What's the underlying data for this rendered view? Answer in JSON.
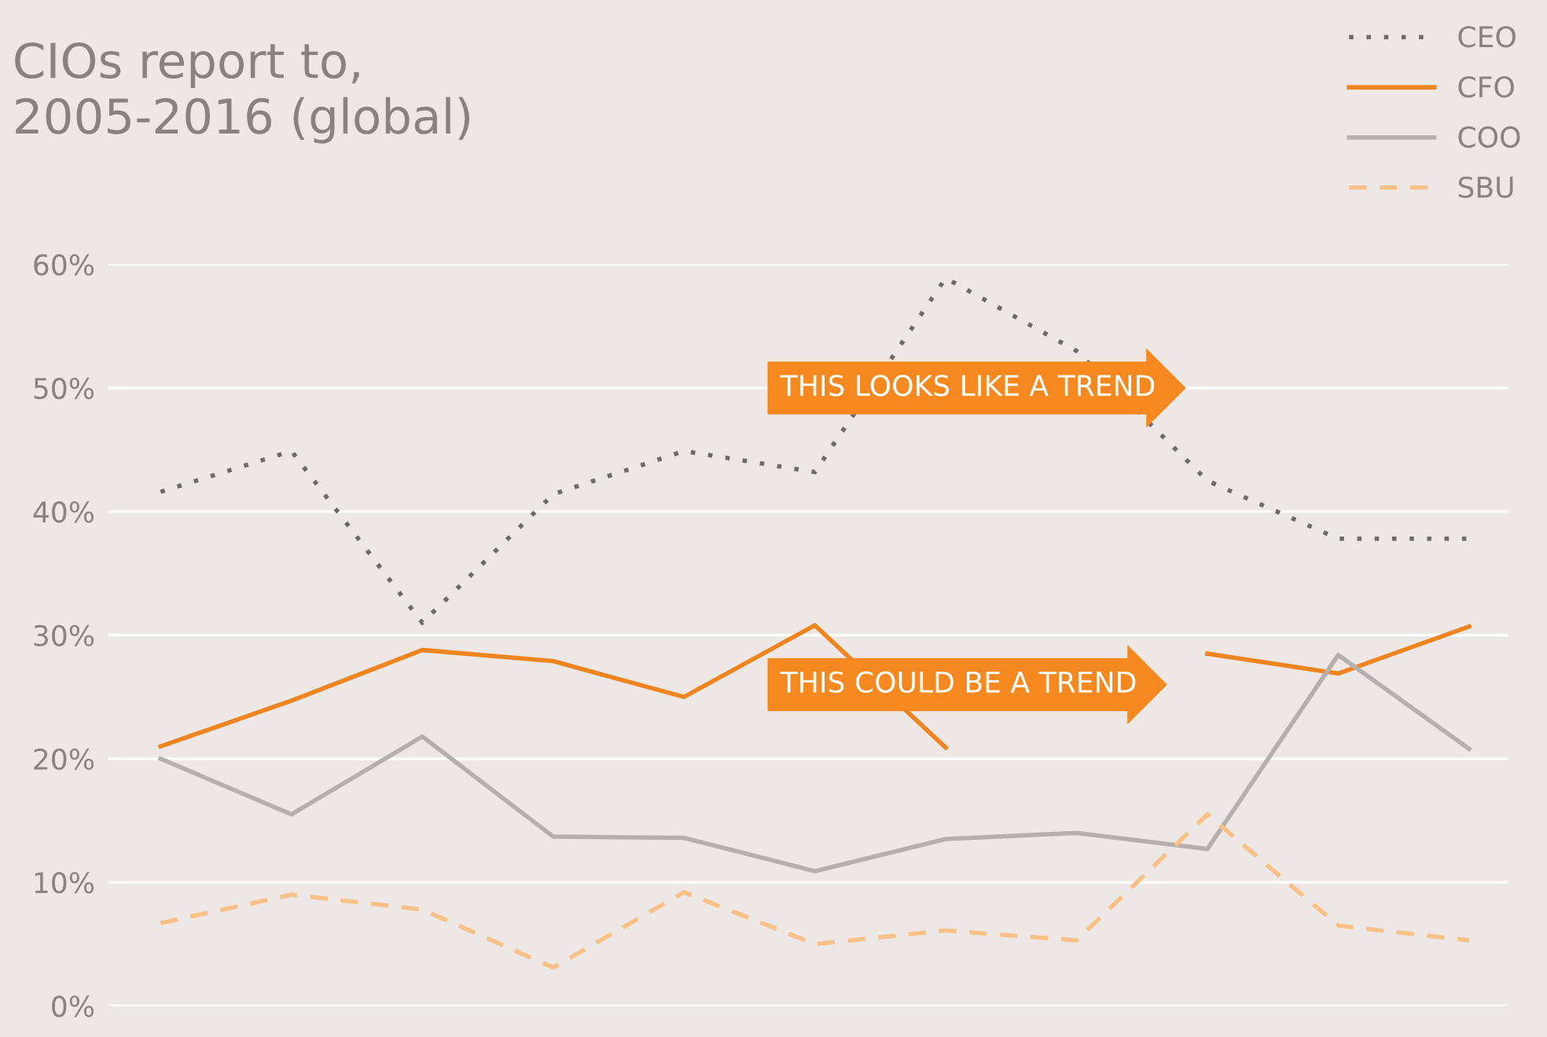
{
  "chart_data": {
    "type": "line",
    "title": "CIOs report to,\n2005-2016 (global)",
    "categories": [
      null,
      null,
      null,
      null,
      null,
      null,
      null,
      null,
      null,
      null,
      null
    ],
    "series": [
      {
        "name": "CEO",
        "color": "#6e6a6a",
        "line_style": "dotted",
        "values": [
          41.6,
          44.9,
          31,
          41.4,
          44.9,
          43.2,
          58.9,
          53,
          42.5,
          37.8,
          37.8
        ]
      },
      {
        "name": "CFO",
        "color": "#f0841f",
        "line_style": "solid",
        "values": [
          21,
          24.7,
          28.8,
          27.9,
          25,
          30.8,
          20.9,
          null,
          28.5,
          26.9,
          30.7
        ]
      },
      {
        "name": "COO",
        "color": "#b5b0ae",
        "line_style": "solid",
        "values": [
          20,
          15.5,
          21.8,
          13.7,
          13.6,
          10.9,
          13.5,
          14,
          12.7,
          28.4,
          20.8
        ]
      },
      {
        "name": "SBU",
        "color": "#f9c187",
        "line_style": "dashed",
        "values": [
          6.7,
          9,
          7.8,
          3.1,
          9.2,
          5,
          6.1,
          5.3,
          15.5,
          6.5,
          5.3
        ]
      }
    ],
    "annotations": [
      "THIS LOOKS LIKE A TREND",
      "THIS COULD BE A TREND"
    ],
    "ylim": [
      0,
      60
    ],
    "yticks": [
      {
        "value": 0,
        "label": "0%"
      },
      {
        "value": 10,
        "label": "10%"
      },
      {
        "value": 20,
        "label": "20%"
      },
      {
        "value": 30,
        "label": "30%"
      },
      {
        "value": 40,
        "label": "40%"
      },
      {
        "value": 50,
        "label": "50%"
      },
      {
        "value": 60,
        "label": "60%"
      }
    ],
    "tick_labels": "y",
    "grid": "y",
    "legend": "top right"
  }
}
